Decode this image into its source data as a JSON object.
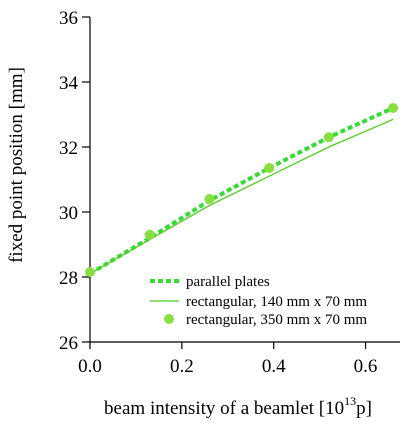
{
  "chart_data": {
    "type": "line",
    "xlabel_main": "beam intensity of a beamlet [10",
    "xlabel_sup": "13",
    "xlabel_unit": "p]",
    "ylabel": "fixed point position [mm]",
    "xlim": [
      0.0,
      0.675
    ],
    "ylim": [
      26,
      36
    ],
    "x_ticks": [
      0.0,
      0.2,
      0.4,
      0.6
    ],
    "x_tick_labels": [
      "0.0",
      "0.2",
      "0.4",
      "0.6"
    ],
    "y_ticks": [
      26,
      28,
      30,
      32,
      34,
      36
    ],
    "y_tick_labels": [
      "26",
      "28",
      "30",
      "32",
      "34",
      "36"
    ],
    "grid": false,
    "legend_position": "bottom-right",
    "series": [
      {
        "name": "parallel plates",
        "style": "dotted",
        "color": "#33dd33",
        "x": [
          0.0,
          0.13,
          0.26,
          0.39,
          0.52,
          0.66
        ],
        "y": [
          28.1,
          29.2,
          30.35,
          31.35,
          32.3,
          33.2
        ]
      },
      {
        "name": "rectangular, 140 mm x 70 mm",
        "style": "solid",
        "color": "#55cc22",
        "x": [
          0.0,
          0.13,
          0.26,
          0.39,
          0.52,
          0.66
        ],
        "y": [
          28.1,
          29.15,
          30.2,
          31.1,
          32.0,
          32.85
        ]
      },
      {
        "name": "rectangular, 350 mm x 70 mm",
        "style": "markers",
        "color": "#88e040",
        "x": [
          0.0,
          0.13,
          0.26,
          0.39,
          0.52,
          0.66
        ],
        "y": [
          28.15,
          29.3,
          30.4,
          31.35,
          32.3,
          33.2
        ]
      }
    ]
  }
}
